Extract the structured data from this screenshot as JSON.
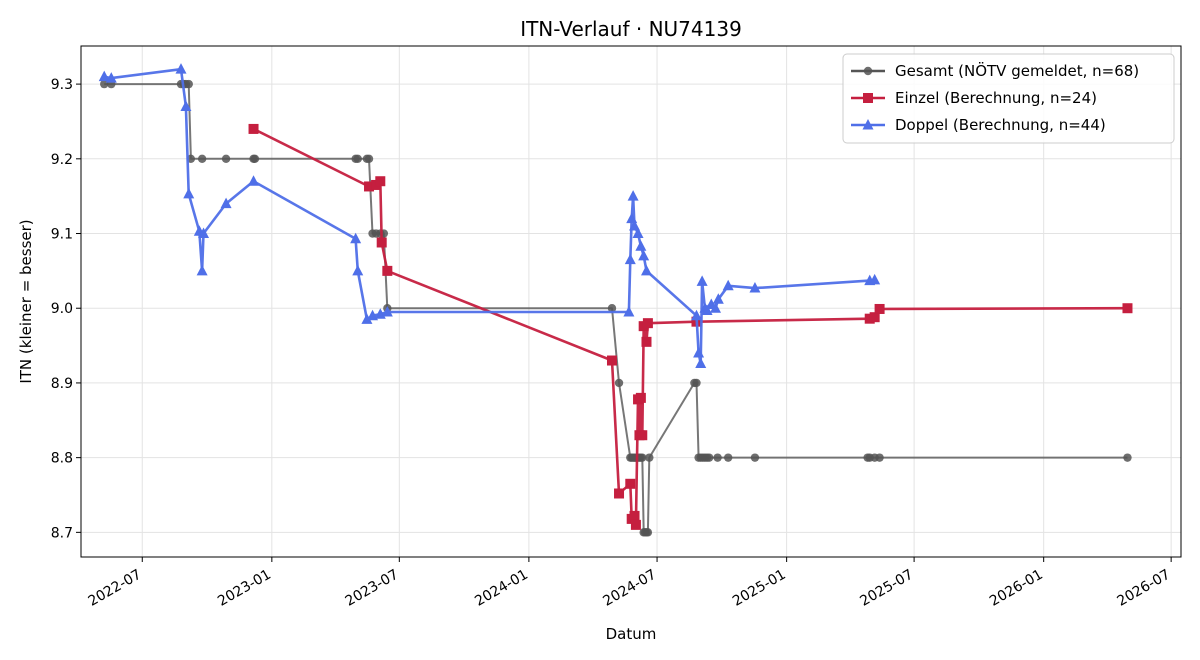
{
  "chart_data": {
    "type": "line",
    "title": "ITN-Verlauf · NU74139",
    "xlabel": "Datum",
    "ylabel": "ITN  (kleiner = besser)",
    "xlim": [
      "2022-04-05",
      "2026-07-15"
    ],
    "ylim": [
      8.667,
      9.351
    ],
    "x_ticks": [
      "2022-07",
      "2023-01",
      "2023-07",
      "2024-01",
      "2024-07",
      "2025-01",
      "2025-07",
      "2026-01",
      "2026-07"
    ],
    "y_ticks": [
      "8.7",
      "8.8",
      "8.9",
      "9.0",
      "9.1",
      "9.2",
      "9.3"
    ],
    "grid": true,
    "legend_position": "top-right",
    "series": [
      {
        "name": "Gesamt (NÖTV gemeldet, n=68)",
        "color": "#555555",
        "marker": "circle",
        "points": [
          [
            "2022-05-08",
            9.3
          ],
          [
            "2022-05-18",
            9.3
          ],
          [
            "2022-08-25",
            9.3
          ],
          [
            "2022-08-29",
            9.3
          ],
          [
            "2022-09-01",
            9.3
          ],
          [
            "2022-09-05",
            9.3
          ],
          [
            "2022-09-08",
            9.2
          ],
          [
            "2022-09-24",
            9.2
          ],
          [
            "2022-10-28",
            9.2
          ],
          [
            "2022-12-06",
            9.2
          ],
          [
            "2022-12-08",
            9.2
          ],
          [
            "2023-04-30",
            9.2
          ],
          [
            "2023-05-03",
            9.2
          ],
          [
            "2023-05-16",
            9.2
          ],
          [
            "2023-05-19",
            9.2
          ],
          [
            "2023-05-24",
            9.1
          ],
          [
            "2023-05-29",
            9.1
          ],
          [
            "2023-06-04",
            9.1
          ],
          [
            "2023-06-09",
            9.1
          ],
          [
            "2023-06-14",
            9.0
          ],
          [
            "2024-04-28",
            9.0
          ],
          [
            "2024-05-08",
            8.9
          ],
          [
            "2024-05-24",
            8.8
          ],
          [
            "2024-05-26",
            8.8
          ],
          [
            "2024-05-28",
            8.8
          ],
          [
            "2024-05-30",
            8.8
          ],
          [
            "2024-06-01",
            8.8
          ],
          [
            "2024-06-04",
            8.8
          ],
          [
            "2024-06-06",
            8.8
          ],
          [
            "2024-06-08",
            8.8
          ],
          [
            "2024-06-10",
            8.8
          ],
          [
            "2024-06-12",
            8.7
          ],
          [
            "2024-06-14",
            8.7
          ],
          [
            "2024-06-16",
            8.7
          ],
          [
            "2024-06-18",
            8.7
          ],
          [
            "2024-06-20",
            8.8
          ],
          [
            "2024-08-23",
            8.9
          ],
          [
            "2024-08-26",
            8.9
          ],
          [
            "2024-08-29",
            8.8
          ],
          [
            "2024-09-01",
            8.8
          ],
          [
            "2024-09-04",
            8.8
          ],
          [
            "2024-09-07",
            8.8
          ],
          [
            "2024-09-10",
            8.8
          ],
          [
            "2024-09-13",
            8.8
          ],
          [
            "2024-09-25",
            8.8
          ],
          [
            "2024-10-10",
            8.8
          ],
          [
            "2024-11-17",
            8.8
          ],
          [
            "2025-04-26",
            8.8
          ],
          [
            "2025-04-29",
            8.8
          ],
          [
            "2025-05-06",
            8.8
          ],
          [
            "2025-05-13",
            8.8
          ],
          [
            "2026-04-30",
            8.8
          ]
        ]
      },
      {
        "name": "Einzel (Berechnung, n=24)",
        "color": "#c51f3f",
        "marker": "square",
        "points": [
          [
            "2022-12-06",
            9.24
          ],
          [
            "2023-05-19",
            9.163
          ],
          [
            "2023-05-29",
            9.165
          ],
          [
            "2023-06-04",
            9.17
          ],
          [
            "2023-06-06",
            9.088
          ],
          [
            "2023-06-14",
            9.05
          ],
          [
            "2024-04-28",
            8.93
          ],
          [
            "2024-05-08",
            8.752
          ],
          [
            "2024-05-24",
            8.765
          ],
          [
            "2024-05-26",
            8.718
          ],
          [
            "2024-05-30",
            8.722
          ],
          [
            "2024-06-01",
            8.71
          ],
          [
            "2024-06-04",
            8.878
          ],
          [
            "2024-06-06",
            8.83
          ],
          [
            "2024-06-08",
            8.88
          ],
          [
            "2024-06-10",
            8.83
          ],
          [
            "2024-06-12",
            8.976
          ],
          [
            "2024-06-16",
            8.955
          ],
          [
            "2024-06-18",
            8.98
          ],
          [
            "2024-08-26",
            8.982
          ],
          [
            "2025-04-29",
            8.986
          ],
          [
            "2025-05-06",
            8.988
          ],
          [
            "2025-05-13",
            8.999
          ],
          [
            "2026-04-30",
            9.0
          ]
        ]
      },
      {
        "name": "Doppel (Berechnung, n=44)",
        "color": "#4f6fe8",
        "marker": "triangle",
        "points": [
          [
            "2022-05-08",
            9.31
          ],
          [
            "2022-05-18",
            9.308
          ],
          [
            "2022-08-25",
            9.32
          ],
          [
            "2022-09-01",
            9.27
          ],
          [
            "2022-09-05",
            9.153
          ],
          [
            "2022-09-20",
            9.103
          ],
          [
            "2022-09-24",
            9.05
          ],
          [
            "2022-09-26",
            9.1
          ],
          [
            "2022-10-28",
            9.14
          ],
          [
            "2022-12-06",
            9.17
          ],
          [
            "2023-04-30",
            9.093
          ],
          [
            "2023-05-03",
            9.05
          ],
          [
            "2023-05-16",
            8.985
          ],
          [
            "2023-05-24",
            8.99
          ],
          [
            "2023-06-04",
            8.992
          ],
          [
            "2023-06-14",
            8.995
          ],
          [
            "2024-05-22",
            8.995
          ],
          [
            "2024-05-24",
            9.065
          ],
          [
            "2024-05-26",
            9.12
          ],
          [
            "2024-05-28",
            9.15
          ],
          [
            "2024-05-30",
            9.11
          ],
          [
            "2024-06-04",
            9.1
          ],
          [
            "2024-06-08",
            9.083
          ],
          [
            "2024-06-12",
            9.07
          ],
          [
            "2024-06-16",
            9.05
          ],
          [
            "2024-08-26",
            8.99
          ],
          [
            "2024-08-29",
            8.94
          ],
          [
            "2024-09-01",
            8.926
          ],
          [
            "2024-09-03",
            9.036
          ],
          [
            "2024-09-07",
            9.0
          ],
          [
            "2024-09-10",
            8.997
          ],
          [
            "2024-09-16",
            9.005
          ],
          [
            "2024-09-22",
            9.0
          ],
          [
            "2024-09-26",
            9.012
          ],
          [
            "2024-10-10",
            9.03
          ],
          [
            "2024-11-17",
            9.027
          ],
          [
            "2025-04-29",
            9.037
          ],
          [
            "2025-05-06",
            9.038
          ]
        ]
      }
    ]
  }
}
